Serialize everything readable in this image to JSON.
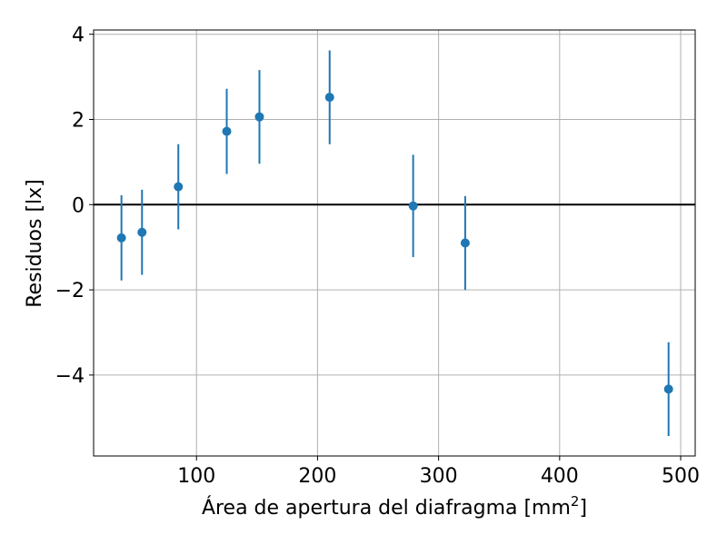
{
  "chart_data": {
    "type": "scatter",
    "xlabel": "Área de apertura del diafragma [mm",
    "xlabel_superscript": "2",
    "xlabel_suffix": "]",
    "ylabel": "Residuos [lx]",
    "xlim": [
      15,
      512
    ],
    "ylim": [
      -5.9,
      4.1
    ],
    "xticks": [
      100,
      200,
      300,
      400,
      500
    ],
    "xtick_labels": [
      "100",
      "200",
      "300",
      "400",
      "500"
    ],
    "yticks": [
      -4,
      -2,
      0,
      2,
      4
    ],
    "ytick_labels": [
      "−4",
      "−2",
      "0",
      "2",
      "4"
    ],
    "grid": true,
    "reference_line_y": 0,
    "series": [
      {
        "color": "#1f77b4",
        "x": [
          38,
          55,
          85,
          125,
          152,
          210,
          279,
          322,
          490
        ],
        "y": [
          -0.78,
          -0.65,
          0.42,
          1.72,
          2.06,
          2.52,
          -0.03,
          -0.9,
          -4.33
        ],
        "yerr": [
          1.0,
          1.0,
          1.0,
          1.0,
          1.1,
          1.1,
          1.2,
          1.1,
          1.1
        ]
      }
    ],
    "axis_color": "#000000",
    "grid_color": "#b0b0b0",
    "reference_line_color": "#000000"
  }
}
